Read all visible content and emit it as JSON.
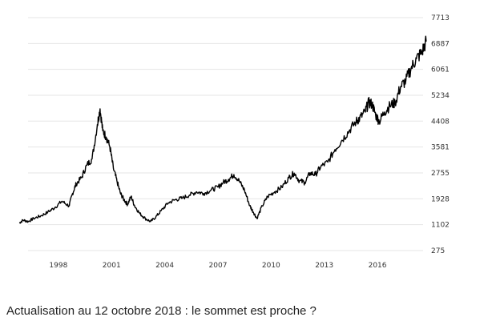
{
  "chart_data": {
    "type": "line",
    "title": "",
    "xlabel": "",
    "ylabel": "",
    "grid": true,
    "y_axis_side": "right",
    "x_ticks": [
      "1998",
      "2001",
      "2004",
      "2007",
      "2010",
      "2013",
      "2016"
    ],
    "y_ticks": [
      "7713",
      "6887",
      "6061",
      "5234",
      "4408",
      "3581",
      "2755",
      "1928",
      "1102",
      "275"
    ],
    "ylim": [
      275,
      7713
    ],
    "xlim": [
      1995.7,
      2018.8
    ],
    "colors": {
      "line": "#000000",
      "grid": "#e6e6e6",
      "tick_text": "#333333"
    },
    "series": [
      {
        "x": [
          1995.8,
          1996.0,
          1996.3,
          1996.6,
          1997.0,
          1997.4,
          1997.8,
          1998.2,
          1998.6,
          1998.8,
          1999.0,
          1999.3,
          1999.6,
          1999.9,
          2000.2,
          2000.35,
          2000.5,
          2000.7,
          2000.9,
          2001.1,
          2001.3,
          2001.5,
          2001.7,
          2001.9,
          2002.1,
          2002.3,
          2002.6,
          2002.9,
          2003.2,
          2003.5,
          2003.8,
          2004.2,
          2004.6,
          2005.0,
          2005.4,
          2005.8,
          2006.2,
          2006.6,
          2007.0,
          2007.3,
          2007.6,
          2007.9,
          2008.2,
          2008.5,
          2008.8,
          2009.0,
          2009.2,
          2009.5,
          2009.8,
          2010.2,
          2010.6,
          2011.0,
          2011.3,
          2011.6,
          2011.9,
          2012.2,
          2012.5,
          2012.8,
          2013.2,
          2013.6,
          2014.0,
          2014.4,
          2014.8,
          2015.0,
          2015.3,
          2015.5,
          2015.7,
          2015.9,
          2016.1,
          2016.4,
          2016.7,
          2017.0,
          2017.3,
          2017.6,
          2017.9,
          2018.2,
          2018.5,
          2018.75
        ],
        "values": [
          1150,
          1250,
          1200,
          1300,
          1380,
          1500,
          1650,
          1850,
          1700,
          2100,
          2400,
          2600,
          3000,
          3200,
          4300,
          4800,
          4100,
          3900,
          3600,
          2900,
          2500,
          2100,
          1900,
          1750,
          2000,
          1700,
          1450,
          1300,
          1200,
          1350,
          1550,
          1800,
          1900,
          1950,
          2050,
          2150,
          2100,
          2200,
          2300,
          2450,
          2550,
          2700,
          2500,
          2200,
          1700,
          1500,
          1300,
          1700,
          2000,
          2150,
          2300,
          2600,
          2750,
          2500,
          2450,
          2750,
          2700,
          2950,
          3100,
          3500,
          3800,
          4100,
          4400,
          4500,
          4700,
          5000,
          4950,
          4600,
          4400,
          4700,
          4900,
          5000,
          5500,
          5700,
          6100,
          6400,
          6600,
          6950
        ]
      }
    ]
  },
  "caption": "Actualisation au 12 octobre 2018 : le sommet est proche ?"
}
